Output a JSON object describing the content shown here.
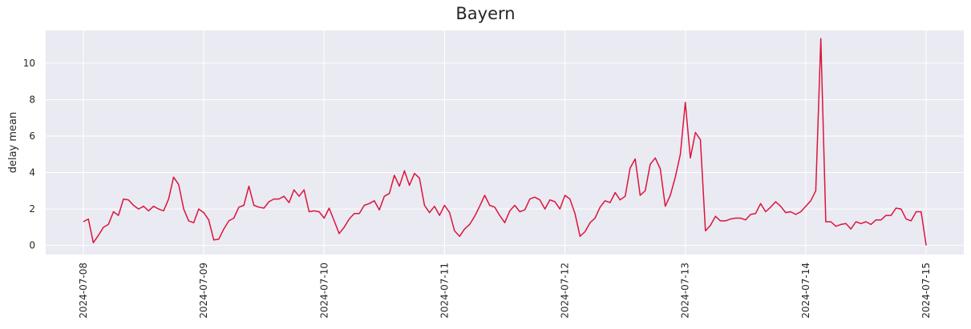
{
  "chart_data": {
    "type": "line",
    "title": "Bayern",
    "xlabel": "",
    "ylabel": "delay mean",
    "x_ticks": [
      "2024-07-08",
      "2024-07-09",
      "2024-07-10",
      "2024-07-11",
      "2024-07-12",
      "2024-07-13",
      "2024-07-14",
      "2024-07-15"
    ],
    "y_ticks": [
      0,
      2,
      4,
      6,
      8,
      10
    ],
    "xlim": [
      "2024-07-07 16:30",
      "2024-07-15 07:30"
    ],
    "ylim": [
      -0.5,
      11.8
    ],
    "grid": true,
    "colors": {
      "line": "#dc143c",
      "background": "#eaeaf2",
      "grid": "#ffffff"
    },
    "series": [
      {
        "x": [
          "2024-07-08 00:00",
          "2024-07-08 01:00",
          "2024-07-08 02:00",
          "2024-07-08 03:00",
          "2024-07-08 04:00",
          "2024-07-08 05:00",
          "2024-07-08 06:00",
          "2024-07-08 07:00",
          "2024-07-08 08:00",
          "2024-07-08 09:00",
          "2024-07-08 10:00",
          "2024-07-08 11:00",
          "2024-07-08 12:00",
          "2024-07-08 13:00",
          "2024-07-08 14:00",
          "2024-07-08 15:00",
          "2024-07-08 16:00",
          "2024-07-08 17:00",
          "2024-07-08 18:00",
          "2024-07-08 19:00",
          "2024-07-08 20:00",
          "2024-07-08 21:00",
          "2024-07-08 22:00",
          "2024-07-08 23:00",
          "2024-07-09 00:00",
          "2024-07-09 01:00",
          "2024-07-09 02:00",
          "2024-07-09 03:00",
          "2024-07-09 04:00",
          "2024-07-09 05:00",
          "2024-07-09 06:00",
          "2024-07-09 07:00",
          "2024-07-09 08:00",
          "2024-07-09 09:00",
          "2024-07-09 10:00",
          "2024-07-09 11:00",
          "2024-07-09 12:00",
          "2024-07-09 13:00",
          "2024-07-09 14:00",
          "2024-07-09 15:00",
          "2024-07-09 16:00",
          "2024-07-09 17:00",
          "2024-07-09 18:00",
          "2024-07-09 19:00",
          "2024-07-09 20:00",
          "2024-07-09 21:00",
          "2024-07-09 22:00",
          "2024-07-09 23:00",
          "2024-07-10 00:00",
          "2024-07-10 01:00",
          "2024-07-10 02:00",
          "2024-07-10 03:00",
          "2024-07-10 04:00",
          "2024-07-10 05:00",
          "2024-07-10 06:00",
          "2024-07-10 07:00",
          "2024-07-10 08:00",
          "2024-07-10 09:00",
          "2024-07-10 10:00",
          "2024-07-10 11:00",
          "2024-07-10 12:00",
          "2024-07-10 13:00",
          "2024-07-10 14:00",
          "2024-07-10 15:00",
          "2024-07-10 16:00",
          "2024-07-10 17:00",
          "2024-07-10 18:00",
          "2024-07-10 19:00",
          "2024-07-10 20:00",
          "2024-07-10 21:00",
          "2024-07-10 22:00",
          "2024-07-10 23:00",
          "2024-07-11 00:00",
          "2024-07-11 01:00",
          "2024-07-11 02:00",
          "2024-07-11 03:00",
          "2024-07-11 04:00",
          "2024-07-11 05:00",
          "2024-07-11 06:00",
          "2024-07-11 07:00",
          "2024-07-11 08:00",
          "2024-07-11 09:00",
          "2024-07-11 10:00",
          "2024-07-11 11:00",
          "2024-07-11 12:00",
          "2024-07-11 13:00",
          "2024-07-11 14:00",
          "2024-07-11 15:00",
          "2024-07-11 16:00",
          "2024-07-11 17:00",
          "2024-07-11 18:00",
          "2024-07-11 19:00",
          "2024-07-11 20:00",
          "2024-07-11 21:00",
          "2024-07-11 22:00",
          "2024-07-11 23:00",
          "2024-07-12 00:00",
          "2024-07-12 01:00",
          "2024-07-12 02:00",
          "2024-07-12 03:00",
          "2024-07-12 04:00",
          "2024-07-12 05:00",
          "2024-07-12 06:00",
          "2024-07-12 07:00",
          "2024-07-12 08:00",
          "2024-07-12 09:00",
          "2024-07-12 10:00",
          "2024-07-12 11:00",
          "2024-07-12 12:00",
          "2024-07-12 13:00",
          "2024-07-12 14:00",
          "2024-07-12 15:00",
          "2024-07-12 16:00",
          "2024-07-12 17:00",
          "2024-07-12 18:00",
          "2024-07-12 19:00",
          "2024-07-12 20:00",
          "2024-07-12 21:00",
          "2024-07-12 22:00",
          "2024-07-12 23:00",
          "2024-07-13 00:00",
          "2024-07-13 01:00",
          "2024-07-13 02:00",
          "2024-07-13 03:00",
          "2024-07-13 04:00",
          "2024-07-13 05:00",
          "2024-07-13 06:00",
          "2024-07-13 07:00",
          "2024-07-13 08:00",
          "2024-07-13 09:00",
          "2024-07-13 10:00",
          "2024-07-13 11:00",
          "2024-07-13 12:00",
          "2024-07-13 13:00",
          "2024-07-13 14:00",
          "2024-07-13 15:00",
          "2024-07-13 16:00",
          "2024-07-13 17:00",
          "2024-07-13 18:00",
          "2024-07-13 19:00",
          "2024-07-13 20:00",
          "2024-07-13 21:00",
          "2024-07-13 22:00",
          "2024-07-13 23:00",
          "2024-07-14 00:00",
          "2024-07-14 01:00",
          "2024-07-14 02:00",
          "2024-07-14 03:00",
          "2024-07-14 04:00",
          "2024-07-14 05:00",
          "2024-07-14 06:00",
          "2024-07-14 07:00",
          "2024-07-14 08:00",
          "2024-07-14 09:00",
          "2024-07-14 10:00",
          "2024-07-14 11:00",
          "2024-07-14 12:00",
          "2024-07-14 13:00",
          "2024-07-14 14:00",
          "2024-07-14 15:00",
          "2024-07-14 16:00",
          "2024-07-14 17:00",
          "2024-07-14 18:00",
          "2024-07-14 19:00",
          "2024-07-14 20:00",
          "2024-07-14 21:00",
          "2024-07-14 22:00",
          "2024-07-14 23:00",
          "2024-07-15 00:00"
        ],
        "y": [
          1.3,
          1.45,
          0.15,
          0.55,
          1.0,
          1.15,
          1.85,
          1.65,
          2.55,
          2.5,
          2.2,
          2.0,
          2.15,
          1.9,
          2.15,
          2.0,
          1.9,
          2.55,
          3.75,
          3.35,
          2.0,
          1.35,
          1.25,
          2.0,
          1.8,
          1.4,
          0.3,
          0.35,
          0.9,
          1.35,
          1.5,
          2.1,
          2.2,
          3.25,
          2.2,
          2.1,
          2.05,
          2.4,
          2.55,
          2.55,
          2.7,
          2.35,
          3.05,
          2.7,
          3.05,
          1.85,
          1.9,
          1.85,
          1.5,
          2.05,
          1.35,
          0.65,
          1.0,
          1.45,
          1.75,
          1.75,
          2.2,
          2.3,
          2.45,
          1.95,
          2.7,
          2.85,
          3.85,
          3.25,
          4.1,
          3.3,
          3.95,
          3.7,
          2.2,
          1.8,
          2.15,
          1.65,
          2.2,
          1.8,
          0.8,
          0.5,
          0.9,
          1.15,
          1.6,
          2.15,
          2.75,
          2.2,
          2.1,
          1.65,
          1.25,
          1.9,
          2.2,
          1.85,
          1.95,
          2.55,
          2.65,
          2.5,
          2.0,
          2.5,
          2.4,
          2.0,
          2.75,
          2.55,
          1.75,
          0.5,
          0.75,
          1.25,
          1.5,
          2.1,
          2.45,
          2.35,
          2.9,
          2.5,
          2.7,
          4.25,
          4.75,
          2.75,
          3.0,
          4.45,
          4.8,
          4.2,
          2.15,
          2.75,
          3.75,
          5.0,
          7.85,
          4.8,
          6.2,
          5.8,
          0.8,
          1.1,
          1.6,
          1.35,
          1.35,
          1.45,
          1.5,
          1.5,
          1.4,
          1.7,
          1.75,
          2.3,
          1.85,
          2.1,
          2.4,
          2.15,
          1.8,
          1.85,
          1.7,
          1.85,
          2.15,
          2.45,
          3.0,
          11.35,
          1.3,
          1.3,
          1.05,
          1.15,
          1.2,
          0.9,
          1.3,
          1.2,
          1.3,
          1.15,
          1.4,
          1.4,
          1.65,
          1.65,
          2.05,
          2.0,
          1.45,
          1.35,
          1.85,
          1.85,
          0.0
        ]
      }
    ]
  }
}
